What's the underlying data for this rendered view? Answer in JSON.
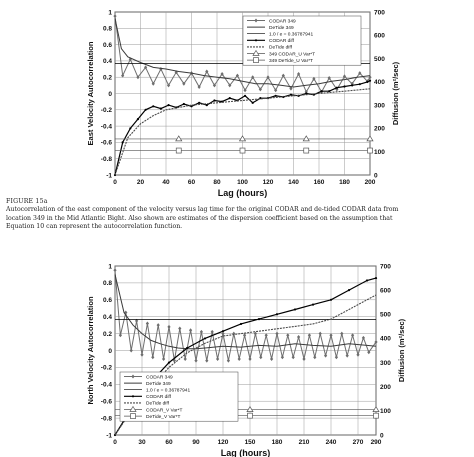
{
  "caption": {
    "heading": "FIGURE 15a",
    "lines": [
      "Autocorrelation of the east component of the velocity versus lag time for the original CODAR and de-tided CODAR data from",
      "location 349 in the Mid Atlantic Bight. Also shown are estimates of the dispersion coefficient based on the assumption that",
      "Equation 10 can represent the autocorrelation function."
    ]
  },
  "chart_data": [
    {
      "type": "line",
      "xlabel": "Lag (hours)",
      "ylabel": "East Velocity Autocorrelation",
      "y2label": "Diffusion (m²/sec)",
      "xlim": [
        0,
        200
      ],
      "ylim": [
        -1,
        1
      ],
      "y2lim": [
        0,
        700
      ],
      "xticks": [
        "0",
        "20",
        "40",
        "60",
        "80",
        "100",
        "120",
        "140",
        "160",
        "180",
        "200"
      ],
      "yticks": [
        "1",
        "0.8",
        "0.6",
        "0.4",
        "0.2",
        "0",
        "-0.2",
        "-0.4",
        "-0.6",
        "-0.8",
        "-1"
      ],
      "y2ticks": [
        "700",
        "600",
        "500",
        "400",
        "300",
        "200",
        "100",
        "0"
      ],
      "grid": true,
      "legend_position": "top-right",
      "legend": [
        "CODAR 349",
        "DeTide 349",
        "1.0 / e = 0.36787941",
        "CODAR diff",
        "DeTide diff",
        "349 CODAR_U Var*T",
        "349 DeTide_U Var*T"
      ],
      "series": [
        {
          "name": "CODAR 349",
          "axis": "left",
          "x": [
            0,
            6,
            12,
            18,
            24,
            30,
            36,
            42,
            48,
            54,
            60,
            66,
            72,
            78,
            84,
            90,
            96,
            102,
            108,
            114,
            120,
            126,
            132,
            138,
            144,
            150,
            156,
            162,
            168,
            174,
            180,
            186,
            192,
            198,
            200
          ],
          "y": [
            0.95,
            0.22,
            0.42,
            0.2,
            0.32,
            0.12,
            0.3,
            0.1,
            0.26,
            0.12,
            0.25,
            0.08,
            0.27,
            0.1,
            0.24,
            0.1,
            0.22,
            0.04,
            0.2,
            0.05,
            0.2,
            0.04,
            0.22,
            0.06,
            0.24,
            0.02,
            0.18,
            0.02,
            0.19,
            0.05,
            0.21,
            0.12,
            0.25,
            0.15,
            0.2
          ]
        },
        {
          "name": "DeTide 349",
          "axis": "left",
          "x": [
            0,
            5,
            10,
            20,
            30,
            40,
            50,
            60,
            70,
            80,
            90,
            100,
            110,
            120,
            130,
            140,
            150,
            160,
            170,
            180,
            190,
            200
          ],
          "y": [
            0.92,
            0.55,
            0.45,
            0.38,
            0.32,
            0.3,
            0.27,
            0.25,
            0.22,
            0.2,
            0.18,
            0.15,
            0.12,
            0.12,
            0.1,
            0.08,
            0.1,
            0.12,
            0.15,
            0.17,
            0.2,
            0.22
          ]
        },
        {
          "name": "1.0 / e = 0.36787941",
          "axis": "left",
          "x": [
            0,
            200
          ],
          "y": [
            0.3678794,
            0.3678794
          ]
        },
        {
          "name": "CODAR diff",
          "axis": "right",
          "x": [
            0,
            6,
            12,
            18,
            24,
            30,
            36,
            42,
            48,
            54,
            60,
            66,
            72,
            78,
            84,
            90,
            96,
            102,
            108,
            114,
            120,
            126,
            132,
            138,
            144,
            150,
            156,
            162,
            168,
            174,
            180,
            186,
            192,
            198,
            200
          ],
          "y": [
            0,
            140,
            200,
            240,
            280,
            295,
            285,
            300,
            290,
            305,
            295,
            310,
            300,
            320,
            315,
            330,
            320,
            340,
            310,
            330,
            330,
            340,
            335,
            345,
            340,
            350,
            345,
            360,
            360,
            375,
            380,
            385,
            390,
            400,
            405
          ]
        },
        {
          "name": "DeTide diff",
          "axis": "right",
          "x": [
            0,
            10,
            20,
            30,
            40,
            50,
            60,
            70,
            80,
            90,
            100,
            110,
            120,
            130,
            140,
            150,
            160,
            170,
            180,
            190,
            200
          ],
          "y": [
            0,
            160,
            220,
            255,
            280,
            290,
            300,
            305,
            310,
            315,
            320,
            325,
            330,
            335,
            340,
            345,
            350,
            355,
            360,
            365,
            370
          ]
        },
        {
          "name": "349 CODAR_U Var*T",
          "axis": "right",
          "x": [
            50,
            100,
            150,
            200
          ],
          "y": [
            155,
            155,
            155,
            155
          ]
        },
        {
          "name": "349 DeTide_U Var*T",
          "axis": "right",
          "x": [
            50,
            100,
            150,
            200
          ],
          "y": [
            105,
            105,
            105,
            105
          ]
        }
      ]
    },
    {
      "type": "line",
      "xlabel": "Lag (hours)",
      "ylabel": "North Velocity Autocorrelation",
      "y2label": "Diffusion (m²/sec)",
      "xlim": [
        0,
        290
      ],
      "ylim": [
        -1,
        1
      ],
      "y2lim": [
        0,
        700
      ],
      "xticks": [
        "0",
        "30",
        "60",
        "90",
        "120",
        "150",
        "180",
        "210",
        "240",
        "270",
        "290"
      ],
      "yticks": [
        "1",
        "0.8",
        "0.6",
        "0.4",
        "0.2",
        "0",
        "-0.2",
        "-0.4",
        "-0.6",
        "-0.8",
        "-1"
      ],
      "y2ticks": [
        "700",
        "600",
        "500",
        "400",
        "300",
        "200",
        "100",
        "0"
      ],
      "grid": true,
      "legend_position": "bottom-left",
      "legend": [
        "CODAR 349",
        "DeTide 349",
        "1.0 / e = 0.36787941",
        "CODAR diff",
        "DeTide diff",
        "CODAR_V Var*T",
        "DeTide_V Var*T"
      ],
      "series": [
        {
          "name": "CODAR 349",
          "axis": "left",
          "x": [
            0,
            6,
            12,
            18,
            24,
            30,
            36,
            42,
            48,
            54,
            60,
            66,
            72,
            78,
            84,
            90,
            96,
            102,
            108,
            114,
            120,
            126,
            132,
            138,
            144,
            150,
            156,
            162,
            168,
            174,
            180,
            186,
            192,
            198,
            204,
            210,
            216,
            222,
            228,
            234,
            240,
            246,
            252,
            258,
            264,
            270,
            276,
            282,
            290
          ],
          "y": [
            0.95,
            0.18,
            0.45,
            0.0,
            0.35,
            -0.05,
            0.32,
            -0.08,
            0.3,
            -0.1,
            0.28,
            -0.12,
            0.26,
            -0.1,
            0.24,
            -0.12,
            0.22,
            -0.12,
            0.22,
            -0.1,
            0.2,
            -0.12,
            0.2,
            -0.1,
            0.18,
            -0.1,
            0.2,
            -0.08,
            0.18,
            -0.1,
            0.2,
            -0.08,
            0.18,
            -0.08,
            0.16,
            -0.1,
            0.18,
            -0.08,
            0.2,
            -0.06,
            0.18,
            -0.08,
            0.2,
            -0.06,
            0.18,
            -0.05,
            0.15,
            -0.02,
            0.1
          ]
        },
        {
          "name": "DeTide 349",
          "axis": "left",
          "x": [
            0,
            10,
            20,
            30,
            40,
            50,
            60,
            70,
            80,
            90,
            100,
            120,
            140,
            160,
            180,
            200,
            220,
            240,
            260,
            280,
            290
          ],
          "y": [
            0.9,
            0.45,
            0.3,
            0.2,
            0.12,
            0.08,
            0.05,
            0.03,
            0.02,
            0.02,
            0.03,
            0.05,
            0.04,
            0.06,
            0.05,
            0.08,
            0.06,
            0.05,
            0.08,
            0.06,
            0.05
          ]
        },
        {
          "name": "1.0 / e = 0.36787941",
          "axis": "left",
          "x": [
            0,
            290
          ],
          "y": [
            0.3678794,
            0.3678794
          ]
        },
        {
          "name": "CODAR diff",
          "axis": "right",
          "x": [
            0,
            20,
            40,
            60,
            80,
            100,
            120,
            140,
            160,
            180,
            200,
            220,
            240,
            260,
            280,
            290
          ],
          "y": [
            0,
            120,
            220,
            300,
            360,
            400,
            430,
            460,
            480,
            500,
            520,
            540,
            560,
            600,
            640,
            650
          ]
        },
        {
          "name": "DeTide diff",
          "axis": "right",
          "x": [
            0,
            20,
            40,
            60,
            80,
            100,
            120,
            140,
            160,
            180,
            200,
            220,
            240,
            260,
            280,
            290
          ],
          "y": [
            0,
            110,
            200,
            280,
            340,
            380,
            410,
            420,
            430,
            440,
            450,
            460,
            480,
            520,
            560,
            580
          ]
        },
        {
          "name": "CODAR_V Var*T",
          "axis": "right",
          "x": [
            50,
            150,
            290
          ],
          "y": [
            105,
            105,
            105
          ]
        },
        {
          "name": "DeTide_V Var*T",
          "axis": "right",
          "x": [
            50,
            150,
            290
          ],
          "y": [
            80,
            80,
            80
          ]
        }
      ]
    }
  ]
}
